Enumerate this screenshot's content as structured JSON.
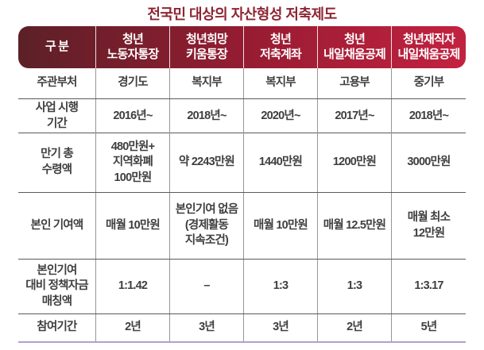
{
  "chart_data": {
    "type": "table",
    "title": "전국민 대상의 자산형성 저축제도",
    "columns": [
      "구 분",
      "청년\n노동자통장",
      "청년희망\n키움통장",
      "청년\n저축계좌",
      "청년\n내일채움공제",
      "청년재직자\n내일채움공제"
    ],
    "rows": [
      {
        "label": "주관부처",
        "values": [
          "경기도",
          "복지부",
          "복지부",
          "고용부",
          "중기부"
        ]
      },
      {
        "label": "사업 시행\n기간",
        "values": [
          "2016년~",
          "2018년~",
          "2020년~",
          "2017년~",
          "2018년~"
        ]
      },
      {
        "label": "만기 총\n수령액",
        "values": [
          "480만원+\n지역화폐\n100만원",
          "약 2243만원",
          "1440만원",
          "1200만원",
          "3000만원"
        ]
      },
      {
        "label": "본인 기여액",
        "values": [
          "매월 10만원",
          "본인기여 없음\n(경제활동\n지속조건)",
          "매월 10만원",
          "매월 12.5만원",
          "매월 최소\n12만원"
        ]
      },
      {
        "label": "본인기여\n대비 정책자금\n매칭액",
        "values": [
          "1:1.42",
          "–",
          "1:3",
          "1:3",
          "1:3.17"
        ]
      },
      {
        "label": "참여기간",
        "values": [
          "2년",
          "3년",
          "3년",
          "2년",
          "5년"
        ]
      }
    ]
  },
  "colors": {
    "title": "#8e2532",
    "header_text": "#ffffff",
    "header_gradient_start": "#5c2027",
    "header_gradient_mid": "#9a1c33",
    "header_gradient_end": "#c22240",
    "body_text": "#3f3f3f",
    "row_line": "#5a5a5a",
    "col_line": "#969696",
    "bottom_line": "#b59fcf"
  }
}
